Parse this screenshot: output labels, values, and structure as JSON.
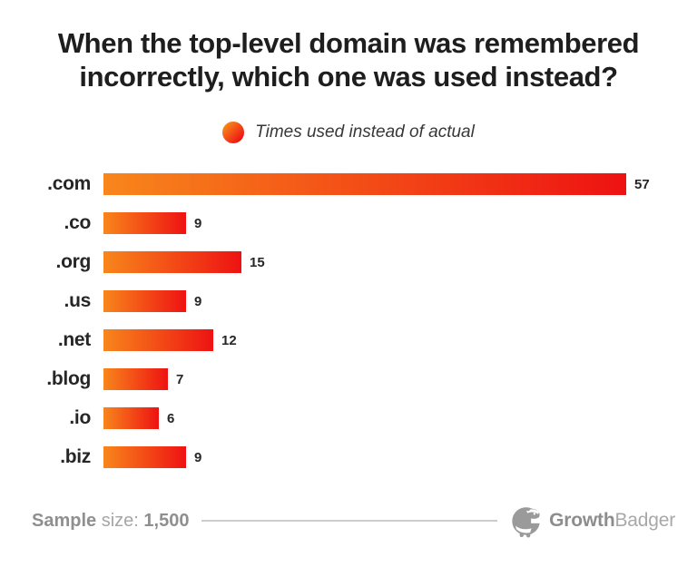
{
  "title": {
    "line1": "When the top-level domain was remembered",
    "line2": "incorrectly, which one was used instead?"
  },
  "legend": {
    "label": "Times used instead of actual"
  },
  "chart_data": {
    "type": "bar",
    "orientation": "horizontal",
    "title": "When the top-level domain was remembered incorrectly, which one was used instead?",
    "series_label": "Times used instead of actual",
    "categories": [
      ".com",
      ".co",
      ".org",
      ".us",
      ".net",
      ".blog",
      ".io",
      ".biz"
    ],
    "values": [
      57,
      9,
      15,
      9,
      12,
      7,
      6,
      9
    ],
    "xlim": [
      0,
      57
    ],
    "value_labels_shown": true,
    "grid": false,
    "legend_position": "top-center"
  },
  "footer": {
    "sample_word": "Sample",
    "size_word": "size:",
    "sample_value": "1,500",
    "brand_bold": "Growth",
    "brand_light": "Badger"
  },
  "colors": {
    "accent_orange": "#F8861B",
    "accent_red": "#EE1212",
    "title_text": "#1E1E1E",
    "footer_gray": "#9B9B9B"
  }
}
